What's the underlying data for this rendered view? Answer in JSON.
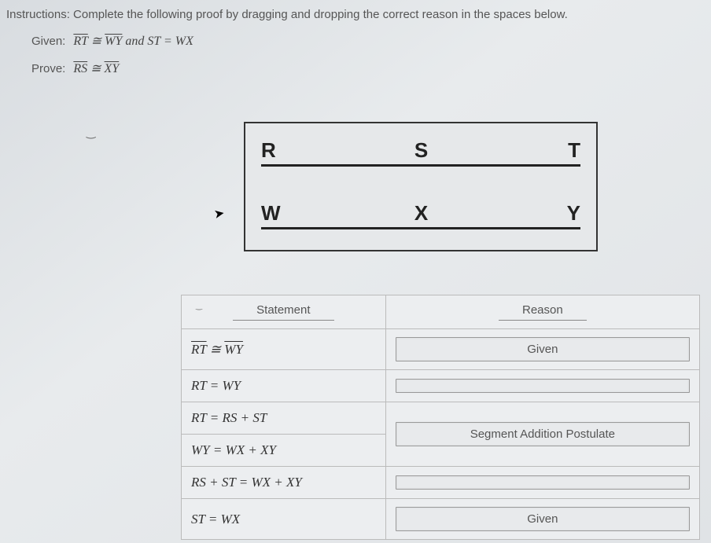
{
  "instructions": "Instructions: Complete the following proof by dragging and dropping the correct reason in the spaces below.",
  "given": {
    "label": "Given:",
    "seg1a": "RT",
    "seg1b": "WY",
    "rel1": " ≅ ",
    "and": " and ",
    "seg2a": "ST",
    "rel2": " = ",
    "seg2b": "WX"
  },
  "prove": {
    "label": "Prove:",
    "seg1": "RS",
    "rel": " ≅ ",
    "seg2": "XY"
  },
  "diagram": {
    "line1": {
      "p1": "R",
      "p2": "S",
      "p3": "T"
    },
    "line2": {
      "p1": "W",
      "p2": "X",
      "p3": "Y"
    },
    "border_color": "#333333",
    "line_color": "#222222",
    "bg": "#e6e8ea",
    "font_size": 26
  },
  "table": {
    "headers": {
      "stmt": "Statement",
      "reason": "Reason"
    },
    "rows": [
      {
        "stmt_html": "<span class='overline'>RT</span> ≅ <span class='overline'>WY</span>",
        "reason": "Given"
      },
      {
        "stmt_html": "RT = WY",
        "reason": ""
      },
      {
        "stmt_html": "RT = RS + ST",
        "reason": null
      },
      {
        "stmt_html": "WY = WX + XY",
        "reason": "Segment Addition Postulate"
      },
      {
        "stmt_html": "RS + ST = WX + XY",
        "reason": ""
      },
      {
        "stmt_html": "ST = WX",
        "reason": "Given"
      }
    ],
    "border_color": "#bbbbbb",
    "bg": "#eceef0",
    "reason_box_border": "#999999"
  },
  "colors": {
    "page_bg": "#e0e3e6",
    "text": "#4a4a4a"
  }
}
